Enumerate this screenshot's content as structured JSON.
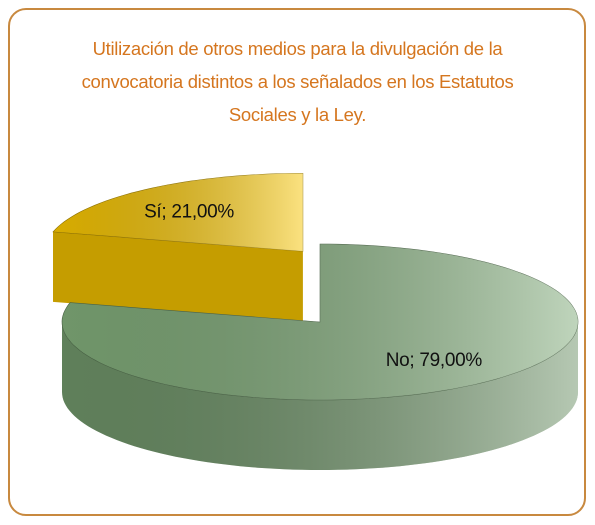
{
  "chart_data": {
    "type": "pie3d",
    "title": "Utilización de otros medios para la divulgación de la convocatoria distintos a los señalados en los Estatutos Sociales y la Ley.",
    "categories": [
      "Sí",
      "No"
    ],
    "values": [
      21,
      79
    ],
    "value_labels": [
      "Sí; 21,00%",
      "No; 79,00%"
    ],
    "colors": [
      "#f6c400",
      "#7faa78"
    ],
    "exploded": [
      true,
      false
    ]
  }
}
